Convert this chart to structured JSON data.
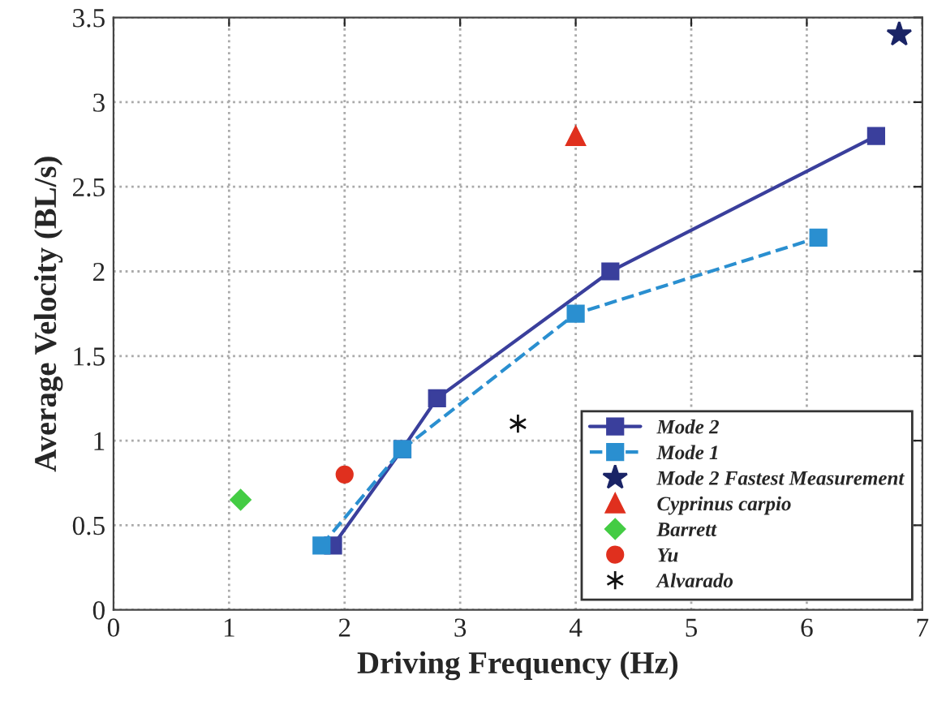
{
  "chart_data": {
    "type": "line",
    "xlabel": "Driving Frequency (Hz)",
    "ylabel": "Average Velocity (BL/s)",
    "xlim": [
      0,
      7
    ],
    "ylim": [
      0,
      3.5
    ],
    "xticks": [
      0,
      1,
      2,
      3,
      4,
      5,
      6,
      7
    ],
    "yticks": [
      0,
      0.5,
      1,
      1.5,
      2,
      2.5,
      3,
      3.5
    ],
    "grid": true,
    "legend": "bottom right",
    "series": [
      {
        "name": "Mode 2",
        "color": "#3a3f9c",
        "marker": "square",
        "line_style": "solid",
        "x": [
          1.9,
          2.5,
          2.8,
          4.3,
          6.6
        ],
        "values": [
          0.38,
          0.95,
          1.25,
          2.0,
          2.8
        ]
      },
      {
        "name": "Mode 1",
        "color": "#2a8fd0",
        "marker": "square",
        "line_style": "dashed",
        "x": [
          1.8,
          2.5,
          4.0,
          6.1
        ],
        "values": [
          0.38,
          0.95,
          1.75,
          2.2
        ]
      },
      {
        "name": "Mode 2 Fastest Measurement",
        "type": "scatter",
        "color": "#1a2466",
        "marker": "star",
        "x": [
          6.8
        ],
        "values": [
          3.4
        ]
      },
      {
        "name": "Cyprinus carpio",
        "type": "scatter",
        "color": "#e0301e",
        "marker": "triangle",
        "x": [
          4.0
        ],
        "values": [
          2.8
        ]
      },
      {
        "name": "Barrett",
        "type": "scatter",
        "color": "#44cc44",
        "marker": "diamond",
        "x": [
          1.1
        ],
        "values": [
          0.65
        ]
      },
      {
        "name": "Yu",
        "type": "scatter",
        "color": "#e0301e",
        "marker": "circle",
        "x": [
          2.0
        ],
        "values": [
          0.8
        ]
      },
      {
        "name": "Alvarado",
        "type": "scatter",
        "color": "#111111",
        "marker": "cross",
        "x": [
          3.5
        ],
        "values": [
          1.1
        ]
      }
    ]
  }
}
